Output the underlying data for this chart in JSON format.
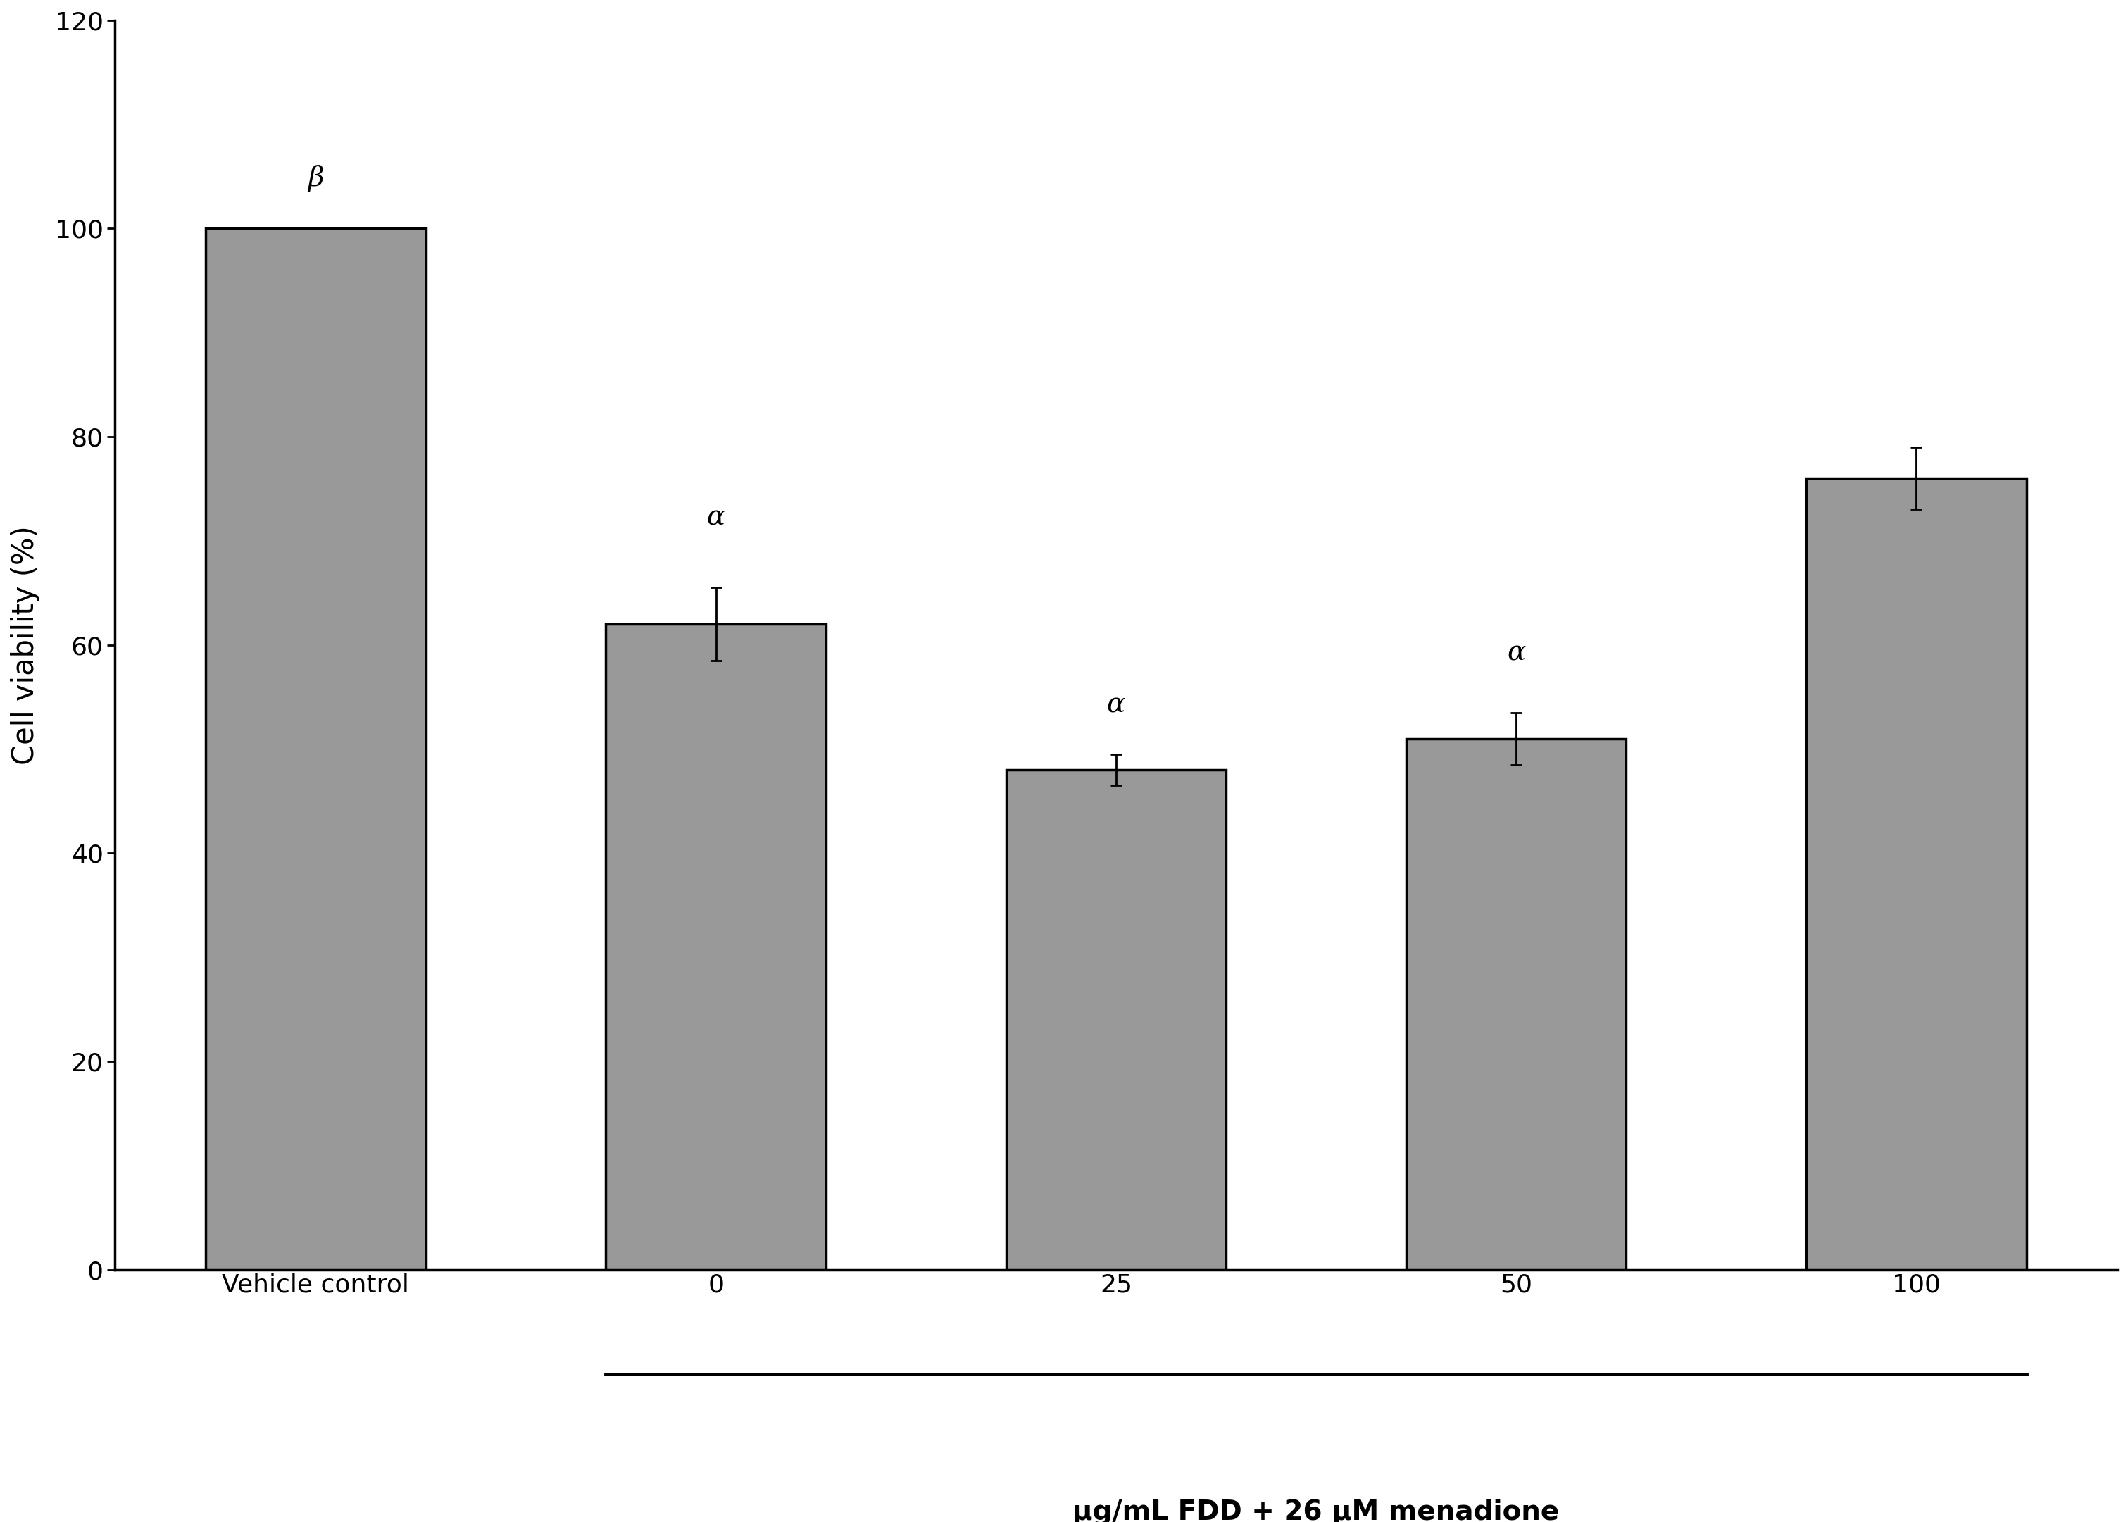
{
  "categories": [
    "Vehicle control",
    "0",
    "25",
    "50",
    "100"
  ],
  "values": [
    100.0,
    62.0,
    48.0,
    51.0,
    76.0
  ],
  "errors": [
    0.0,
    3.5,
    1.5,
    2.5,
    3.0
  ],
  "bar_color": "#999999",
  "bar_edgecolor": "#000000",
  "bar_linewidth": 2.5,
  "bar_width": 0.55,
  "ylabel": "Cell viability (%)",
  "xlabel_main": "μg/mL FDD + 26 μM menadione",
  "ylim": [
    0,
    120
  ],
  "yticks": [
    0,
    20,
    40,
    60,
    80,
    100,
    120
  ],
  "annotations": [
    "β",
    "α",
    "α",
    "α",
    ""
  ],
  "annotation_offsets": [
    3.5,
    5.5,
    3.5,
    4.5,
    5.0
  ],
  "errorbar_color": "#000000",
  "errorbar_linewidth": 2.0,
  "errorbar_capsize": 6,
  "errorbar_capthick": 2.0,
  "background_color": "#ffffff",
  "ylabel_fontsize": 30,
  "xlabel_fontsize": 28,
  "tick_fontsize": 26,
  "annotation_fontsize": 28
}
